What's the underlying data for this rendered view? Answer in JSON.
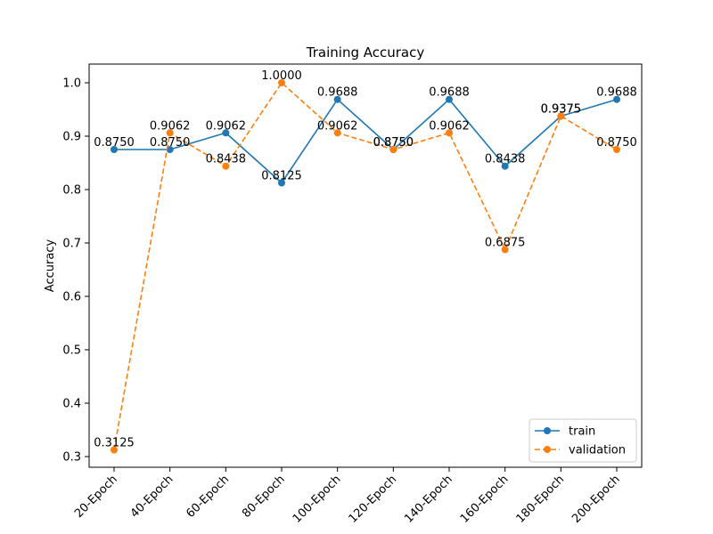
{
  "chart_data": {
    "type": "line",
    "title": "Training Accuracy",
    "xlabel": "",
    "ylabel": "Accuracy",
    "categories": [
      "20-Epoch",
      "40-Epoch",
      "60-Epoch",
      "80-Epoch",
      "100-Epoch",
      "120-Epoch",
      "140-Epoch",
      "160-Epoch",
      "180-Epoch",
      "200-Epoch"
    ],
    "ylim": [
      0.28,
      1.035
    ],
    "yticks": [
      0.3,
      0.4,
      0.5,
      0.6,
      0.7,
      0.8,
      0.9,
      1.0
    ],
    "ytick_labels": [
      "0.3",
      "0.4",
      "0.5",
      "0.6",
      "0.7",
      "0.8",
      "0.9",
      "1.0"
    ],
    "grid": false,
    "legend_position": "bottom-right",
    "series": [
      {
        "name": "train",
        "values": [
          0.875,
          0.875,
          0.9062,
          0.8125,
          0.9688,
          0.875,
          0.9688,
          0.8438,
          0.9375,
          0.9688
        ],
        "labels": [
          "0.8750",
          "0.8750",
          "0.9062",
          "0.8125",
          "0.9688",
          "0.8750",
          "0.9688",
          "0.8438",
          "0.9375",
          "0.9688"
        ],
        "color": "#1f77b4",
        "line_style": "solid",
        "marker": "circle"
      },
      {
        "name": "validation",
        "values": [
          0.3125,
          0.9062,
          0.8438,
          1.0,
          0.9062,
          0.875,
          0.9062,
          0.6875,
          0.9375,
          0.875
        ],
        "labels": [
          "0.3125",
          "0.9062",
          "0.8438",
          "1.0000",
          "0.9062",
          "0.8750",
          "0.9062",
          "0.6875",
          "0.9375",
          "0.8750"
        ],
        "color": "#ff7f0e",
        "line_style": "dashed",
        "marker": "circle"
      }
    ]
  }
}
